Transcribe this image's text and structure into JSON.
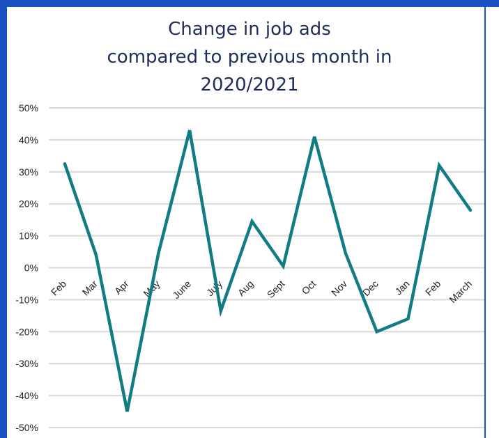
{
  "chart_data": {
    "type": "line",
    "title_lines": [
      "Change in job ads",
      "compared to previous month in",
      "2020/2021"
    ],
    "categories": [
      "Feb",
      "Mar",
      "Apr",
      "May",
      "June",
      "July",
      "Aug",
      "Sept",
      "Oct",
      "Nov",
      "Dec",
      "Jan",
      "Feb",
      "March"
    ],
    "series": [
      {
        "values": [
          32.5,
          4,
          -45,
          4.5,
          43,
          -13.5,
          14.5,
          0.5,
          41,
          4.5,
          -20,
          -16,
          32,
          18
        ]
      }
    ],
    "yticks": [
      "50%",
      "40%",
      "30%",
      "20%",
      "10%",
      "0%",
      "-10%",
      "-20%",
      "-30%",
      "-40%",
      "-50%"
    ],
    "ylim": [
      -50,
      50
    ],
    "grid": true,
    "line_color": "#127c83"
  }
}
